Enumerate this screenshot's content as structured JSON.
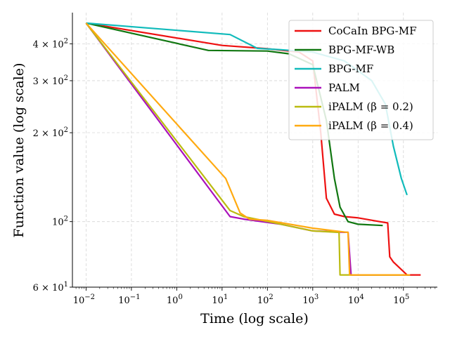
{
  "chart_data": {
    "type": "line",
    "title": "",
    "xlabel": "Time (log scale)",
    "ylabel": "Function value (log scale)",
    "xscale": "log",
    "yscale": "log",
    "xlim": [
      0.005,
      560000
    ],
    "ylim": [
      60,
      510
    ],
    "grid": true,
    "legend_position": "top-right",
    "x_ticks": [
      {
        "value": 0.01,
        "base": "10",
        "exp": "−2"
      },
      {
        "value": 0.1,
        "base": "10",
        "exp": "−1"
      },
      {
        "value": 1,
        "base": "10",
        "exp": "0"
      },
      {
        "value": 10,
        "base": "10",
        "exp": "1"
      },
      {
        "value": 100,
        "base": "10",
        "exp": "2"
      },
      {
        "value": 1000,
        "base": "10",
        "exp": "3"
      },
      {
        "value": 10000,
        "base": "10",
        "exp": "4"
      },
      {
        "value": 100000,
        "base": "10",
        "exp": "5"
      }
    ],
    "y_ticks": [
      {
        "value": 60,
        "mant": "6 × 10",
        "exp": "1"
      },
      {
        "value": 100,
        "mant": "10",
        "exp": "2"
      },
      {
        "value": 200,
        "mant": "2 × 10",
        "exp": "2"
      },
      {
        "value": 300,
        "mant": "3 × 10",
        "exp": "2"
      },
      {
        "value": 400,
        "mant": "4 × 10",
        "exp": "2"
      }
    ],
    "series": [
      {
        "name": "CoCaIn BPG-MF",
        "color": "#ee1111",
        "x": [
          0.01,
          10,
          100,
          500,
          1000,
          1500,
          2000,
          3000,
          5000,
          10000,
          30000,
          45000,
          50000,
          60000,
          120000,
          240000
        ],
        "y": [
          470,
          395,
          385,
          375,
          350,
          200,
          120,
          106,
          104,
          103,
          100,
          99,
          76,
          73,
          66,
          66
        ]
      },
      {
        "name": "BPG-MF-WB",
        "color": "#117711",
        "x": [
          0.01,
          5,
          100,
          300,
          1000,
          2000,
          3000,
          4000,
          6000,
          10000,
          35000
        ],
        "y": [
          470,
          380,
          378,
          370,
          340,
          220,
          140,
          112,
          100,
          98,
          97
        ]
      },
      {
        "name": "BPG-MF",
        "color": "#11bbbb",
        "x": [
          0.01,
          15,
          60,
          200,
          1000,
          5000,
          20000,
          40000,
          60000,
          90000,
          120000
        ],
        "y": [
          470,
          430,
          386,
          382,
          375,
          350,
          300,
          250,
          180,
          140,
          123
        ]
      },
      {
        "name": "PALM",
        "color": "#aa11bb",
        "x": [
          0.01,
          15,
          30,
          200,
          1000,
          5000,
          6000,
          7000,
          140000
        ],
        "y": [
          470,
          104,
          102,
          98,
          93,
          92,
          92,
          66,
          66
        ]
      },
      {
        "name": "iPALM (β = 0.2)",
        "color": "#bbbb11",
        "x": [
          0.01,
          15,
          30,
          200,
          1000,
          3500,
          3800,
          4000,
          140000
        ],
        "y": [
          470,
          109,
          104,
          98,
          93,
          92,
          92,
          66,
          66
        ]
      },
      {
        "name": "iPALM (β = 0.4)",
        "color": "#ffaa11",
        "x": [
          0.01,
          12,
          25,
          40,
          100,
          1000,
          5500,
          6000,
          6500,
          140000
        ],
        "y": [
          470,
          140,
          107,
          102,
          101,
          95,
          92,
          92,
          66,
          66
        ]
      }
    ]
  }
}
